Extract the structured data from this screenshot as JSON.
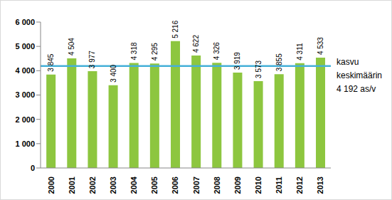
{
  "chart_data": {
    "type": "bar",
    "categories": [
      "2000",
      "2001",
      "2002",
      "2003",
      "2004",
      "2005",
      "2006",
      "2007",
      "2008",
      "2009",
      "2010",
      "2011",
      "2012",
      "2013"
    ],
    "values": [
      3845,
      4504,
      3977,
      3400,
      4318,
      4295,
      5216,
      4622,
      4326,
      3919,
      3573,
      3855,
      4311,
      4533
    ],
    "value_labels": [
      "3 845",
      "4 504",
      "3 977",
      "3 400",
      "4 318",
      "4 295",
      "5 216",
      "4 622",
      "4 326",
      "3 919",
      "3 573",
      "3 855",
      "4 311",
      "4 533"
    ],
    "color": "#8dc63f",
    "ylim": [
      0,
      6000
    ],
    "yticks": [
      0,
      {
        "value": 1000,
        "label": "1 000"
      },
      {
        "value": 2000,
        "label": "2 000"
      },
      {
        "value": 3000,
        "label": "3 000"
      },
      {
        "value": 4000,
        "label": "4 000"
      },
      {
        "value": 5000,
        "label": "5 000"
      },
      {
        "value": 6000,
        "label": "6 000"
      }
    ],
    "grid": false,
    "data_labels": true,
    "average": {
      "value": 4192,
      "label": [
        "kasvu",
        "keskimäärin",
        "4 192 as/v"
      ],
      "color": "#45b0d8"
    }
  }
}
